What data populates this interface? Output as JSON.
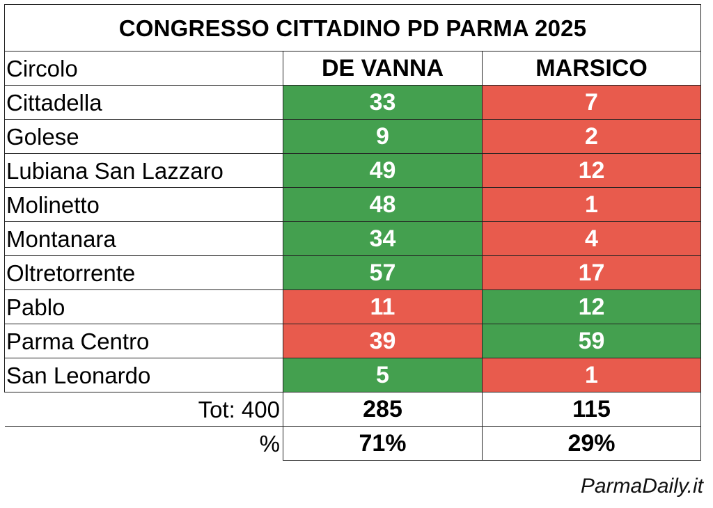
{
  "title": "CONGRESSO CITTADINO PD PARMA 2025",
  "header": {
    "circolo": "Circolo",
    "candidate_a": "DE VANNA",
    "candidate_b": "MARSICO"
  },
  "rows": [
    {
      "circolo": "Cittadella",
      "a": "33",
      "b": "7",
      "winner": "a"
    },
    {
      "circolo": "Golese",
      "a": "9",
      "b": "2",
      "winner": "a"
    },
    {
      "circolo": "Lubiana San Lazzaro",
      "a": "49",
      "b": "12",
      "winner": "a"
    },
    {
      "circolo": "Molinetto",
      "a": "48",
      "b": "1",
      "winner": "a"
    },
    {
      "circolo": "Montanara",
      "a": "34",
      "b": "4",
      "winner": "a"
    },
    {
      "circolo": "Oltretorrente",
      "a": "57",
      "b": "17",
      "winner": "a"
    },
    {
      "circolo": "Pablo",
      "a": "11",
      "b": "12",
      "winner": "b"
    },
    {
      "circolo": "Parma Centro",
      "a": "39",
      "b": "59",
      "winner": "b"
    },
    {
      "circolo": "San Leonardo",
      "a": "5",
      "b": "1",
      "winner": "a"
    }
  ],
  "total": {
    "label": "Tot: 400",
    "a": "285",
    "b": "115"
  },
  "percent": {
    "label": "%",
    "a": "71%",
    "b": "29%"
  },
  "colors": {
    "winner": "#44a04f",
    "loser": "#e85b4d"
  },
  "watermark": "ParmaDaily.it"
}
